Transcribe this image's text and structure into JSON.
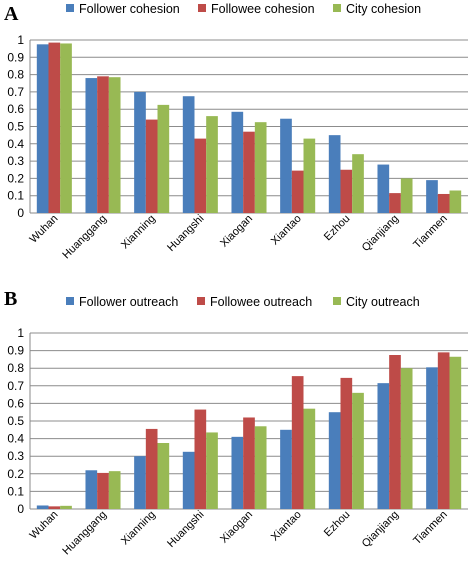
{
  "colors": {
    "blue": "#4a7ebb",
    "red": "#be4b48",
    "green": "#98b954"
  },
  "chart_data": [
    {
      "panel": "A",
      "type": "bar",
      "categories": [
        "Wuhan",
        "Huanggang",
        "Xianning",
        "Huangshi",
        "Xiaogan",
        "Xiantao",
        "Ezhou",
        "Qianjiang",
        "Tianmen"
      ],
      "series": [
        {
          "name": "Follower cohesion",
          "color": "#4a7ebb",
          "values": [
            0.975,
            0.78,
            0.7,
            0.675,
            0.585,
            0.545,
            0.45,
            0.28,
            0.19
          ]
        },
        {
          "name": "Followee cohesion",
          "color": "#be4b48",
          "values": [
            0.985,
            0.79,
            0.54,
            0.43,
            0.47,
            0.245,
            0.25,
            0.115,
            0.11
          ]
        },
        {
          "name": "City cohesion",
          "color": "#98b954",
          "values": [
            0.98,
            0.785,
            0.625,
            0.56,
            0.525,
            0.43,
            0.34,
            0.2,
            0.13
          ]
        }
      ],
      "yticks": [
        "0",
        "0.1",
        "0.2",
        "0.3",
        "0.4",
        "0.5",
        "0.6",
        "0.7",
        "0.8",
        "0.9",
        "1"
      ],
      "ylim": [
        0,
        1
      ],
      "grid": true,
      "legend": "top"
    },
    {
      "panel": "B",
      "type": "bar",
      "categories": [
        "Wuhan",
        "Huanggang",
        "Xianning",
        "Huangshi",
        "Xiaogan",
        "Xiantao",
        "Ezhou",
        "Qianjiang",
        "Tianmen"
      ],
      "series": [
        {
          "name": "Follower outreach",
          "color": "#4a7ebb",
          "values": [
            0.02,
            0.22,
            0.3,
            0.325,
            0.41,
            0.45,
            0.55,
            0.715,
            0.805
          ]
        },
        {
          "name": "Followee outreach",
          "color": "#be4b48",
          "values": [
            0.015,
            0.205,
            0.455,
            0.565,
            0.52,
            0.755,
            0.745,
            0.875,
            0.89
          ]
        },
        {
          "name": "City outreach",
          "color": "#98b954",
          "values": [
            0.018,
            0.215,
            0.375,
            0.435,
            0.47,
            0.57,
            0.66,
            0.8,
            0.865
          ]
        }
      ],
      "yticks": [
        "0",
        "0.1",
        "0.2",
        "0.3",
        "0.4",
        "0.5",
        "0.6",
        "0.7",
        "0.8",
        "0.9",
        "1"
      ],
      "ylim": [
        0,
        1
      ],
      "grid": true,
      "legend": "top"
    }
  ]
}
